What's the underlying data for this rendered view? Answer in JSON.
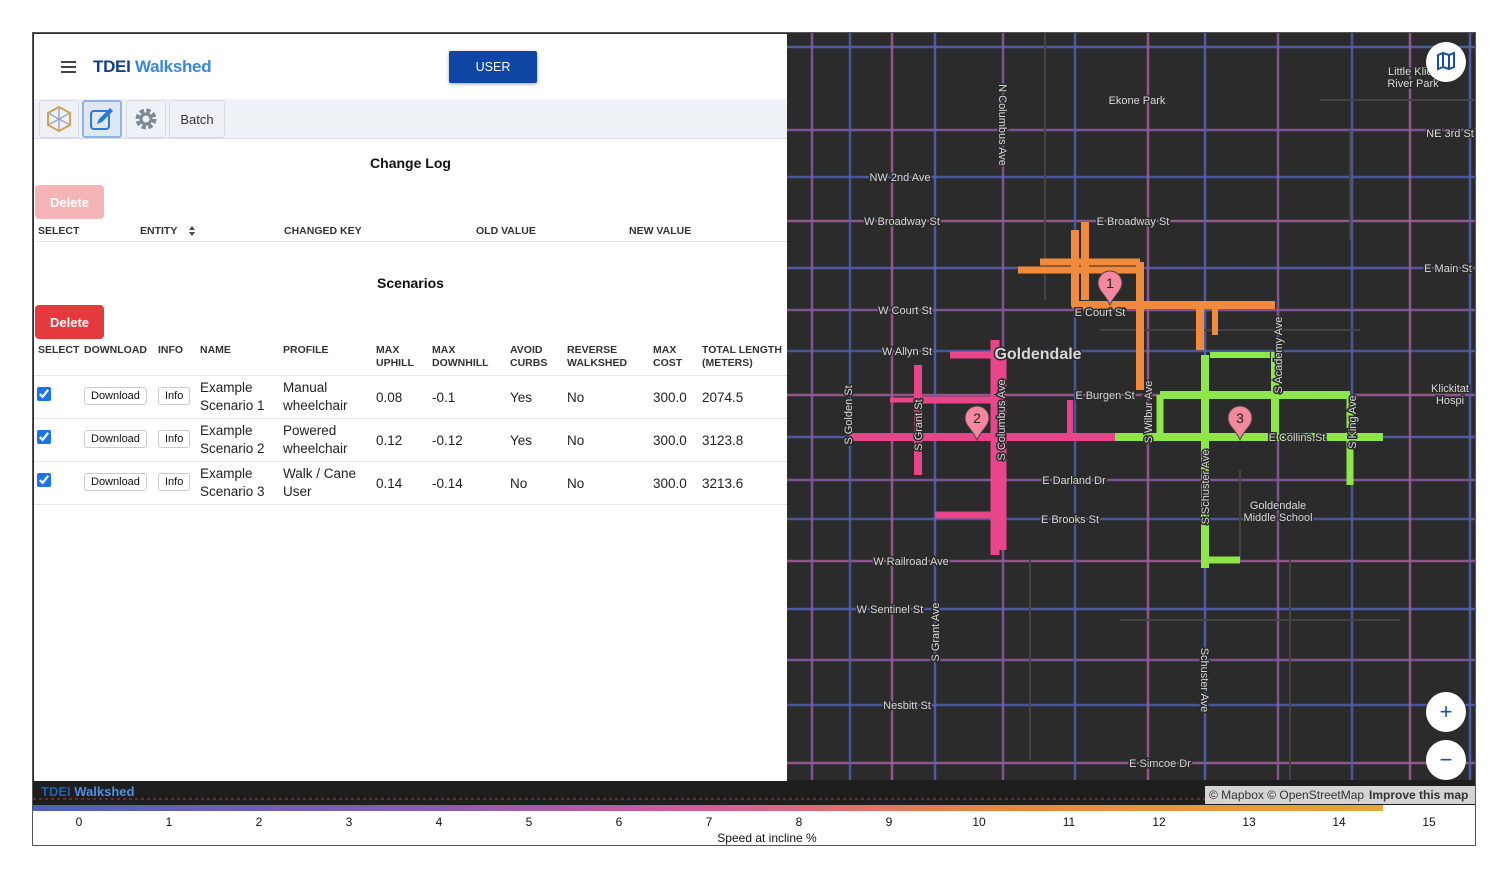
{
  "header": {
    "logo_prefix": "TDEI",
    "logo_name": "Walkshed",
    "user_button": "USER"
  },
  "tabs": {
    "batch": "Batch"
  },
  "change_log": {
    "title": "Change Log",
    "delete_button": "Delete",
    "columns": [
      "SELECT",
      "ENTITY",
      "CHANGED KEY",
      "OLD VALUE",
      "NEW VALUE"
    ]
  },
  "scenarios": {
    "title": "Scenarios",
    "delete_button": "Delete",
    "columns": [
      "SELECT",
      "DOWNLOAD",
      "INFO",
      "NAME",
      "PROFILE",
      "MAX UPHILL",
      "MAX DOWNHILL",
      "AVOID CURBS",
      "REVERSE WALKSHED",
      "MAX COST",
      "TOTAL LENGTH (METERS)"
    ],
    "rows": [
      {
        "selected": true,
        "download": "Download",
        "info": "Info",
        "name": "Example Scenario 1",
        "profile": "Manual wheelchair",
        "max_uphill": "0.08",
        "max_downhill": "-0.1",
        "avoid_curbs": "Yes",
        "reverse_walkshed": "No",
        "max_cost": "300.0",
        "total_length": "2074.5"
      },
      {
        "selected": true,
        "download": "Download",
        "info": "Info",
        "name": "Example Scenario 2",
        "profile": "Powered wheelchair",
        "max_uphill": "0.12",
        "max_downhill": "-0.12",
        "avoid_curbs": "Yes",
        "reverse_walkshed": "No",
        "max_cost": "300.0",
        "total_length": "3123.8"
      },
      {
        "selected": true,
        "download": "Download",
        "info": "Info",
        "name": "Example Scenario 3",
        "profile": "Walk / Cane User",
        "max_uphill": "0.14",
        "max_downhill": "-0.14",
        "avoid_curbs": "No",
        "reverse_walkshed": "No",
        "max_cost": "300.0",
        "total_length": "3213.6"
      }
    ]
  },
  "map": {
    "labels": [
      "Ekone Park",
      "Little Klic",
      "River Park",
      "NE 3rd St",
      "N Columbus Ave",
      "NW 2nd Ave",
      "W Broadway St",
      "E Broadway St",
      "E Main St",
      "W Court St",
      "E Court St",
      "W Allyn St",
      "Goldendale",
      "E Burgen St",
      "S Wilbur Ave",
      "S Academy Ave",
      "S King Ave",
      "E Collins St",
      "S Golden St",
      "S Grant St",
      "S Columbus Ave",
      "Klickitat",
      "Hospi",
      "E Darland Dr",
      "E Brooks St",
      "Goldendale",
      "Middle School",
      "S Schuster Ave",
      "W Railroad Ave",
      "W Sentinel St",
      "S Grant Ave",
      "Nesbitt St",
      "Schuster Ave",
      "E Simcoe Dr"
    ],
    "markers": [
      "1",
      "2",
      "3"
    ],
    "zoom_in": "+",
    "zoom_out": "−",
    "attribution": "© Mapbox © OpenStreetMap",
    "improve": "Improve this map",
    "footer_logo_prefix": "TDEI",
    "footer_logo_name": "Walkshed"
  },
  "legend": {
    "ticks": [
      0,
      1,
      2,
      3,
      4,
      5,
      6,
      7,
      8,
      9,
      10,
      11,
      12,
      13,
      14,
      15
    ],
    "label": "Speed at incline %"
  }
}
